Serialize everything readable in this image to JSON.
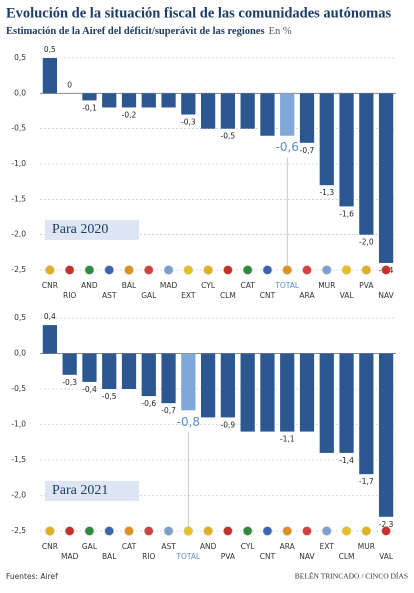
{
  "title": "Evolución de la situación fiscal de las comunidades autónomas",
  "subtitle": "Estimación de la Airef del déficit/superávit de las regiones",
  "unit": "En %",
  "source": "Fuentes: Airef",
  "credit": "BELÉN TRINCADO / CINCO DÍAS",
  "chart_data": [
    {
      "type": "bar",
      "label": "Para 2020",
      "categories": [
        "CNR",
        "RIO",
        "AND",
        "AST",
        "BAL",
        "GAL",
        "MAD",
        "EXT",
        "CYL",
        "CLM",
        "CAT",
        "CNT",
        "TOTAL",
        "ARA",
        "MUR",
        "VAL",
        "PVA",
        "NAV"
      ],
      "values": [
        0.5,
        0,
        -0.1,
        -0.2,
        -0.2,
        -0.2,
        -0.2,
        -0.3,
        -0.5,
        -0.5,
        -0.5,
        -0.6,
        -0.6,
        -0.7,
        -1.3,
        -1.6,
        -2.0,
        -2.4
      ],
      "value_labels": [
        "0,5",
        "0",
        "-0,1",
        null,
        "-0,2",
        null,
        null,
        "-0,3",
        null,
        "-0,5",
        null,
        null,
        "-0,6",
        "-0,7",
        "-1,3",
        "-1,6",
        "-2,0",
        "-2,4"
      ],
      "colors": [
        "#2c5791",
        "#2c5791",
        "#2c5791",
        "#2c5791",
        "#2c5791",
        "#2c5791",
        "#2c5791",
        "#2c5791",
        "#2c5791",
        "#2c5791",
        "#2c5791",
        "#2c5791",
        "#7fa7d8",
        "#2c5791",
        "#2c5791",
        "#2c5791",
        "#2c5791",
        "#2c5791"
      ],
      "ylim": [
        -2.5,
        0.5
      ],
      "yticks": [
        {
          "value": 0.5,
          "label": "0,5"
        },
        {
          "value": 0,
          "label": "0,0"
        },
        {
          "value": -0.5,
          "label": "-0,5"
        },
        {
          "value": -1,
          "label": "-1,0"
        },
        {
          "value": -1.5,
          "label": "-1,5"
        },
        {
          "value": -2,
          "label": "-2,0"
        },
        {
          "value": -2.5,
          "label": "-2,5"
        }
      ],
      "grid": true
    },
    {
      "type": "bar",
      "label": "Para 2021",
      "categories": [
        "CNR",
        "MAD",
        "GAL",
        "BAL",
        "CAT",
        "RIO",
        "AST",
        "TOTAL",
        "AND",
        "PVA",
        "CYL",
        "CNT",
        "ARA",
        "NAV",
        "EXT",
        "CLM",
        "MUR",
        "VAL"
      ],
      "values": [
        0.4,
        -0.3,
        -0.4,
        -0.5,
        -0.5,
        -0.6,
        -0.7,
        -0.8,
        -0.9,
        -0.9,
        -1.1,
        -1.1,
        -1.1,
        -1.1,
        -1.4,
        -1.4,
        -1.7,
        -2.3
      ],
      "value_labels": [
        "0,4",
        "-0,3",
        "-0,4",
        "-0,5",
        null,
        "-0,6",
        "-0,7",
        "-0,8",
        null,
        "-0,9",
        null,
        null,
        "-1,1",
        null,
        null,
        "-1,4",
        "-1,7",
        "-2,3"
      ],
      "colors": [
        "#2c5791",
        "#2c5791",
        "#2c5791",
        "#2c5791",
        "#2c5791",
        "#2c5791",
        "#2c5791",
        "#7fa7d8",
        "#2c5791",
        "#2c5791",
        "#2c5791",
        "#2c5791",
        "#2c5791",
        "#2c5791",
        "#2c5791",
        "#2c5791",
        "#2c5791",
        "#2c5791"
      ],
      "ylim": [
        -2.5,
        0.5
      ],
      "yticks": [
        {
          "value": 0.5,
          "label": "0,5"
        },
        {
          "value": 0,
          "label": "0,0"
        },
        {
          "value": -0.5,
          "label": "-0,5"
        },
        {
          "value": -1,
          "label": "-1,0"
        },
        {
          "value": -1.5,
          "label": "-1,5"
        },
        {
          "value": -2,
          "label": "-2,0"
        },
        {
          "value": -2.5,
          "label": "-2,5"
        }
      ],
      "grid": true
    }
  ]
}
